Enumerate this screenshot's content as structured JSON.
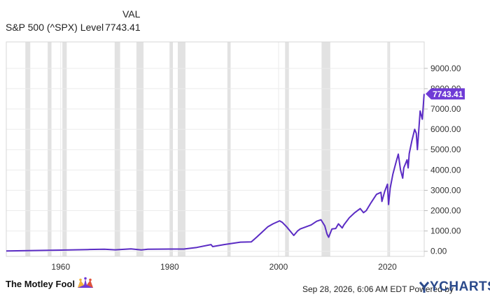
{
  "legend": {
    "column_header": "VAL",
    "series_name": "S&P 500 (^SPX) Level",
    "series_value": "7743.41"
  },
  "footer": {
    "brand": "The Motley Fool",
    "timestamp": "Sep 28, 2026, 6:06 AM EDT  Powered by",
    "ycharts": "YCHARTS"
  },
  "colors": {
    "line": "#5b2cc4",
    "recession_band": "#e2e2e2",
    "grid": "#ebebeb",
    "current_value_badge": "#6f3bd6",
    "ycharts_brand": "#2b4a8b"
  },
  "chart_data": {
    "type": "line",
    "title": "",
    "xlabel": "",
    "ylabel": "",
    "xlim": [
      1950,
      2026.75
    ],
    "ylim": [
      -250,
      10300
    ],
    "x_ticks": [
      1960,
      1980,
      2000,
      2020
    ],
    "y_ticks": [
      "0.00",
      "1000.00",
      "2000.00",
      "3000.00",
      "4000.00",
      "5000.00",
      "6000.00",
      "7000.00",
      "8000.00",
      "9000.00"
    ],
    "y_tick_values": [
      0,
      1000,
      2000,
      3000,
      4000,
      5000,
      6000,
      7000,
      8000,
      9000
    ],
    "grid": true,
    "current_value_label": "7743.41",
    "recessions": [
      [
        1953.5,
        1954.4
      ],
      [
        1957.6,
        1958.3
      ],
      [
        1960.3,
        1961.1
      ],
      [
        1969.9,
        1970.9
      ],
      [
        1973.9,
        1975.2
      ],
      [
        1980.0,
        1980.6
      ],
      [
        1981.5,
        1982.9
      ],
      [
        1990.6,
        1991.2
      ],
      [
        2001.2,
        2001.9
      ],
      [
        2007.9,
        2009.5
      ],
      [
        2020.1,
        2020.4
      ]
    ],
    "series": [
      {
        "x": [
          1950,
          1955,
          1960,
          1965,
          1968,
          1970,
          1972.9,
          1974.8,
          1976,
          1980,
          1982.6,
          1985,
          1987.6,
          1987.9,
          1990,
          1993,
          1995,
          1996,
          1997,
          1998,
          1999,
          2000.2,
          2000.7,
          2001.5,
          2002.8,
          2003.5,
          2004,
          2005,
          2006,
          2007,
          2007.8,
          2008.5,
          2008.9,
          2009.2,
          2009.8,
          2010.5,
          2011,
          2011.7,
          2012,
          2013,
          2014,
          2015,
          2015.6,
          2016.1,
          2017,
          2018,
          2018.8,
          2018.98,
          2019.5,
          2020.0,
          2020.2,
          2020.5,
          2021,
          2021.6,
          2021.99,
          2022.4,
          2022.8,
          2023,
          2023.6,
          2023.8,
          2024,
          2024.5,
          2025.0,
          2025.3,
          2025.5,
          2026.0,
          2026.4,
          2026.74
        ],
        "values": [
          17,
          40,
          58,
          88,
          103,
          72,
          118,
          70,
          105,
          110,
          110,
          190,
          330,
          230,
          330,
          450,
          460,
          700,
          950,
          1200,
          1350,
          1500,
          1420,
          1200,
          780,
          1000,
          1100,
          1200,
          1300,
          1480,
          1550,
          1250,
          850,
          690,
          1100,
          1120,
          1350,
          1150,
          1300,
          1650,
          1900,
          2100,
          1900,
          2000,
          2400,
          2800,
          2900,
          2450,
          2950,
          3300,
          2300,
          3100,
          3800,
          4400,
          4780,
          4000,
          3600,
          4100,
          4500,
          4100,
          4800,
          5450,
          6000,
          5800,
          5000,
          6900,
          6500,
          7743.41
        ]
      }
    ]
  }
}
